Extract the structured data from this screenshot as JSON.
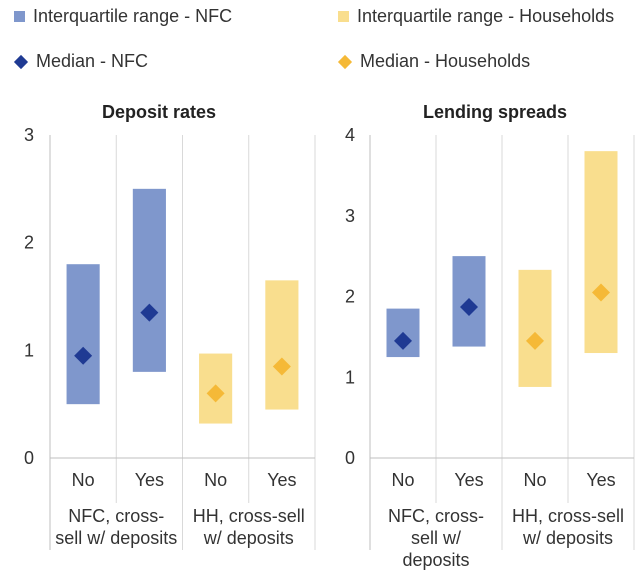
{
  "legend": {
    "items": [
      {
        "label": "Interquartile range - NFC",
        "kind": "range",
        "color": "#7f97cc"
      },
      {
        "label": "Interquartile range - Households",
        "kind": "range",
        "color": "#f9de8e"
      },
      {
        "label": "Median - NFC",
        "kind": "median",
        "color": "#1f3a93"
      },
      {
        "label": "Median - Households",
        "kind": "median",
        "color": "#f5b937"
      }
    ]
  },
  "colors": {
    "nfc_range": "#7f97cc",
    "hh_range": "#f9de8e",
    "nfc_median": "#1f3a93",
    "hh_median": "#f5b937",
    "grid": "#d9d9d9",
    "axis": "#bfbfbf"
  },
  "chart_data": [
    {
      "type": "range-bar",
      "title": "Deposit rates",
      "ylim": [
        0,
        3
      ],
      "yticks": [
        0,
        1,
        2,
        3
      ],
      "categories": [
        "No",
        "Yes",
        "No",
        "Yes"
      ],
      "groups": [
        {
          "label_lines": [
            "NFC, cross-",
            "sell w/ deposits"
          ]
        },
        {
          "label_lines": [
            "HH, cross-sell",
            "w/ deposits"
          ]
        }
      ],
      "series": [
        {
          "name": "NFC",
          "low": [
            0.5,
            0.8,
            null,
            null
          ],
          "high": [
            1.8,
            2.5,
            null,
            null
          ],
          "median": [
            0.95,
            1.35,
            null,
            null
          ]
        },
        {
          "name": "Households",
          "low": [
            null,
            null,
            0.32,
            0.45
          ],
          "high": [
            null,
            null,
            0.97,
            1.65
          ],
          "median": [
            null,
            null,
            0.6,
            0.85
          ]
        }
      ]
    },
    {
      "type": "range-bar",
      "title": "Lending spreads",
      "ylim": [
        0,
        4
      ],
      "yticks": [
        0,
        1,
        2,
        3,
        4
      ],
      "categories": [
        "No",
        "Yes",
        "No",
        "Yes"
      ],
      "groups": [
        {
          "label_lines": [
            "NFC, cross-",
            "sell w/",
            "deposits"
          ]
        },
        {
          "label_lines": [
            "HH, cross-sell",
            "w/ deposits"
          ]
        }
      ],
      "series": [
        {
          "name": "NFC",
          "low": [
            1.25,
            1.38,
            null,
            null
          ],
          "high": [
            1.85,
            2.5,
            null,
            null
          ],
          "median": [
            1.45,
            1.87,
            null,
            null
          ]
        },
        {
          "name": "Households",
          "low": [
            null,
            null,
            0.88,
            1.3
          ],
          "high": [
            null,
            null,
            2.33,
            3.8
          ],
          "median": [
            null,
            null,
            1.45,
            2.05
          ]
        }
      ]
    }
  ]
}
